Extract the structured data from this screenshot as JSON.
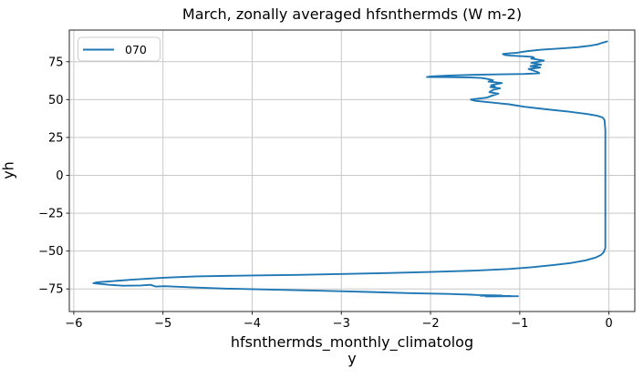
{
  "chart_data": {
    "type": "line",
    "title": "March, zonally averaged hfsnthermds (W m-2)",
    "xlabel": "hfsnthermds_monthly_climatology",
    "xlabel_lines": [
      "hfsnthermds_monthly_climatolog",
      "y"
    ],
    "ylabel": "yh",
    "legend_position": "upper left",
    "grid": true,
    "xlim": [
      -6.05,
      0.29
    ],
    "ylim": [
      -89.9,
      95.9
    ],
    "xticks": [
      -6,
      -5,
      -4,
      -3,
      -2,
      -1,
      0
    ],
    "yticks": [
      -75,
      -50,
      -25,
      0,
      25,
      50,
      75
    ],
    "colors": {
      "line": "#1f77b4",
      "grid": "#c8c8c8",
      "spine": "#262626",
      "text": "#000000",
      "legend_border": "#cccccc",
      "legend_bg": "rgba(255,255,255,0.85)"
    },
    "series": [
      {
        "name": "070",
        "color": "#1f77b4",
        "points": [
          [
            -0.02,
            88.4
          ],
          [
            -0.05,
            87.9
          ],
          [
            -0.09,
            87.2
          ],
          [
            -0.13,
            86.4
          ],
          [
            -0.22,
            85.5
          ],
          [
            -0.35,
            84.6
          ],
          [
            -0.52,
            83.8
          ],
          [
            -0.76,
            82.9
          ],
          [
            -0.9,
            82.1
          ],
          [
            -0.97,
            81.5
          ],
          [
            -1.03,
            80.9
          ],
          [
            -1.12,
            80.5
          ],
          [
            -1.19,
            80.1
          ],
          [
            -1.17,
            79.5
          ],
          [
            -1.1,
            79.0
          ],
          [
            -0.95,
            78.6
          ],
          [
            -0.86,
            78.2
          ],
          [
            -0.84,
            77.6
          ],
          [
            -0.87,
            77.1
          ],
          [
            -0.82,
            76.6
          ],
          [
            -0.73,
            75.7
          ],
          [
            -0.8,
            74.9
          ],
          [
            -0.87,
            74.2
          ],
          [
            -0.76,
            73.1
          ],
          [
            -0.88,
            72.1
          ],
          [
            -0.77,
            71.1
          ],
          [
            -0.9,
            70.2
          ],
          [
            -0.85,
            69.2
          ],
          [
            -0.8,
            68.2
          ],
          [
            -0.78,
            67.4
          ],
          [
            -0.95,
            66.9
          ],
          [
            -1.2,
            66.7
          ],
          [
            -1.5,
            66.4
          ],
          [
            -1.8,
            65.9
          ],
          [
            -2.0,
            65.3
          ],
          [
            -2.04,
            64.9
          ],
          [
            -1.8,
            64.8
          ],
          [
            -1.55,
            64.6
          ],
          [
            -1.43,
            64.3
          ],
          [
            -1.36,
            63.6
          ],
          [
            -1.3,
            62.8
          ],
          [
            -1.35,
            61.9
          ],
          [
            -1.2,
            60.9
          ],
          [
            -1.32,
            59.5
          ],
          [
            -1.28,
            58.7
          ],
          [
            -1.33,
            58.3
          ],
          [
            -1.22,
            57.5
          ],
          [
            -1.3,
            56.4
          ],
          [
            -1.34,
            54.9
          ],
          [
            -1.24,
            53.9
          ],
          [
            -1.3,
            52.8
          ],
          [
            -1.37,
            51.3
          ],
          [
            -1.5,
            50.4
          ],
          [
            -1.55,
            50.0
          ],
          [
            -1.5,
            49.2
          ],
          [
            -1.3,
            48.0
          ],
          [
            -1.24,
            47.6
          ],
          [
            -1.12,
            46.9
          ],
          [
            -0.95,
            45.3
          ],
          [
            -0.7,
            43.6
          ],
          [
            -0.45,
            42.0
          ],
          [
            -0.25,
            40.5
          ],
          [
            -0.13,
            39.3
          ],
          [
            -0.07,
            38.2
          ],
          [
            -0.05,
            36.5
          ],
          [
            -0.04,
            30
          ],
          [
            -0.04,
            20
          ],
          [
            -0.04,
            10
          ],
          [
            -0.04,
            0
          ],
          [
            -0.04,
            -10
          ],
          [
            -0.04,
            -20
          ],
          [
            -0.04,
            -30
          ],
          [
            -0.04,
            -40
          ],
          [
            -0.04,
            -48
          ],
          [
            -0.06,
            -50.8
          ],
          [
            -0.09,
            -52.6
          ],
          [
            -0.15,
            -54.3
          ],
          [
            -0.26,
            -56.1
          ],
          [
            -0.43,
            -57.9
          ],
          [
            -0.63,
            -59.3
          ],
          [
            -0.87,
            -60.7
          ],
          [
            -1.12,
            -61.8
          ],
          [
            -1.5,
            -62.9
          ],
          [
            -2.0,
            -63.8
          ],
          [
            -2.5,
            -64.5
          ],
          [
            -3.0,
            -65.1
          ],
          [
            -3.5,
            -65.7
          ],
          [
            -4.0,
            -66.1
          ],
          [
            -4.63,
            -66.7
          ],
          [
            -5.0,
            -67.6
          ],
          [
            -5.35,
            -68.9
          ],
          [
            -5.6,
            -70.0
          ],
          [
            -5.74,
            -70.6
          ],
          [
            -5.78,
            -71.2
          ],
          [
            -5.6,
            -72.3
          ],
          [
            -5.45,
            -72.9
          ],
          [
            -5.25,
            -72.7
          ],
          [
            -5.14,
            -72.3
          ],
          [
            -5.08,
            -73.4
          ],
          [
            -4.98,
            -73.2
          ],
          [
            -4.63,
            -74.1
          ],
          [
            -4.27,
            -74.8
          ],
          [
            -3.8,
            -75.4
          ],
          [
            -3.23,
            -76.2
          ],
          [
            -2.7,
            -77.0
          ],
          [
            -2.2,
            -77.8
          ],
          [
            -1.8,
            -78.3
          ],
          [
            -1.55,
            -78.8
          ],
          [
            -1.46,
            -79.0
          ],
          [
            -1.2,
            -79.3
          ],
          [
            -1.44,
            -79.5
          ],
          [
            -1.1,
            -79.7
          ],
          [
            -1.38,
            -79.9
          ],
          [
            -1.02,
            -79.8
          ]
        ]
      }
    ]
  }
}
